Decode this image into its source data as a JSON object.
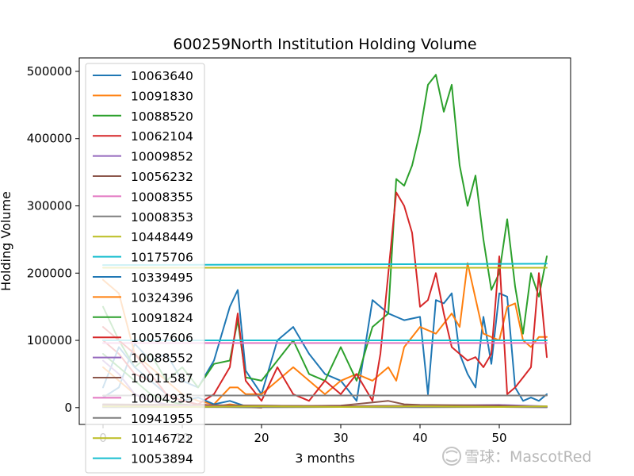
{
  "chart_data": {
    "type": "line",
    "title": "600259North Institution Holding Volume",
    "xlabel": "3 months",
    "ylabel": "Holding Volume",
    "xlim": [
      -3,
      59
    ],
    "ylim": [
      -25000,
      520000
    ],
    "xticks": [
      0,
      10,
      20,
      30,
      40,
      50
    ],
    "xtick_labels": [
      "0",
      "10",
      "20",
      "30",
      "40",
      "50"
    ],
    "yticks": [
      0,
      100000,
      200000,
      300000,
      400000,
      500000
    ],
    "ytick_labels": [
      "0",
      "100000",
      "200000",
      "300000",
      "400000",
      "500000"
    ],
    "grid": false,
    "legend_position": "upper-left",
    "series": [
      {
        "name": "10063640",
        "color": "#1f77b4",
        "x": [
          0,
          2,
          4,
          6,
          8,
          10,
          12,
          14,
          16,
          17,
          18,
          20,
          22,
          24,
          26,
          28,
          30,
          32,
          34,
          36,
          38,
          40,
          41,
          42,
          43,
          44,
          45,
          46,
          47,
          48,
          49,
          50,
          51,
          52,
          53,
          54,
          55,
          56
        ],
        "y": [
          15000,
          30000,
          95000,
          70000,
          80000,
          40000,
          30000,
          70000,
          150000,
          175000,
          55000,
          20000,
          100000,
          120000,
          80000,
          50000,
          40000,
          10000,
          160000,
          140000,
          130000,
          135000,
          20000,
          160000,
          155000,
          170000,
          80000,
          50000,
          30000,
          135000,
          65000,
          170000,
          165000,
          30000,
          10000,
          15000,
          10000,
          20000
        ]
      },
      {
        "name": "10091830",
        "color": "#ff7f0e",
        "x": [
          0,
          2,
          4,
          6,
          8,
          10,
          12,
          14,
          16,
          17,
          18,
          20,
          22,
          24,
          26,
          28,
          30,
          32,
          34,
          36,
          37,
          38,
          40,
          42,
          44,
          45,
          46,
          48,
          50,
          51,
          52,
          53,
          54,
          55,
          56
        ],
        "y": [
          190000,
          170000,
          80000,
          60000,
          40000,
          20000,
          10000,
          5000,
          30000,
          30000,
          20000,
          20000,
          40000,
          60000,
          40000,
          20000,
          40000,
          50000,
          40000,
          60000,
          40000,
          90000,
          120000,
          110000,
          140000,
          120000,
          215000,
          110000,
          100000,
          150000,
          155000,
          100000,
          90000,
          105000,
          105000
        ]
      },
      {
        "name": "10088520",
        "color": "#2ca02c",
        "x": [
          0,
          2,
          4,
          6,
          8,
          10,
          12,
          14,
          16,
          17,
          18,
          20,
          22,
          24,
          26,
          28,
          30,
          32,
          34,
          36,
          37,
          38,
          39,
          40,
          41,
          42,
          43,
          44,
          45,
          46,
          47,
          48,
          49,
          50,
          51,
          52,
          53,
          54,
          55,
          56
        ],
        "y": [
          150000,
          100000,
          60000,
          80000,
          40000,
          60000,
          30000,
          65000,
          70000,
          130000,
          45000,
          40000,
          70000,
          100000,
          50000,
          40000,
          90000,
          40000,
          120000,
          140000,
          340000,
          330000,
          360000,
          410000,
          480000,
          495000,
          440000,
          480000,
          360000,
          300000,
          345000,
          250000,
          175000,
          200000,
          280000,
          180000,
          110000,
          200000,
          165000,
          225000
        ]
      },
      {
        "name": "10062104",
        "color": "#d62728",
        "x": [
          0,
          2,
          4,
          6,
          8,
          10,
          12,
          14,
          16,
          17,
          18,
          20,
          22,
          24,
          26,
          28,
          30,
          32,
          34,
          35,
          36,
          37,
          38,
          39,
          40,
          41,
          42,
          43,
          44,
          45,
          46,
          47,
          48,
          49,
          50,
          51,
          52,
          53,
          54,
          55,
          56
        ],
        "y": [
          100000,
          80000,
          50000,
          40000,
          20000,
          10000,
          5000,
          20000,
          60000,
          140000,
          40000,
          10000,
          60000,
          20000,
          10000,
          40000,
          20000,
          50000,
          10000,
          80000,
          200000,
          320000,
          300000,
          260000,
          150000,
          160000,
          200000,
          140000,
          90000,
          80000,
          70000,
          75000,
          60000,
          80000,
          225000,
          20000,
          30000,
          45000,
          60000,
          200000,
          75000
        ]
      },
      {
        "name": "10009852",
        "color": "#9467bd",
        "x": [
          0,
          10,
          20,
          30,
          40,
          50,
          56
        ],
        "y": [
          3000,
          2000,
          3000,
          2000,
          3000,
          4000,
          2000
        ]
      },
      {
        "name": "10056232",
        "color": "#8c564b",
        "x": [
          0,
          10,
          20,
          30,
          36,
          38,
          40,
          50,
          56
        ],
        "y": [
          2000,
          3000,
          2000,
          3000,
          10000,
          5000,
          4000,
          3000,
          1000
        ]
      },
      {
        "name": "10008355",
        "color": "#e377c2",
        "x": [
          0,
          56
        ],
        "y": [
          96000,
          96000
        ]
      },
      {
        "name": "10008353",
        "color": "#7f7f7f",
        "x": [
          0,
          20,
          56
        ],
        "y": [
          18000,
          18000,
          18000
        ]
      },
      {
        "name": "10448449",
        "color": "#bcbd22",
        "x": [
          0,
          56
        ],
        "y": [
          208000,
          208000
        ]
      },
      {
        "name": "10175706",
        "color": "#17becf",
        "x": [
          0,
          56
        ],
        "y": [
          212000,
          214000
        ]
      },
      {
        "name": "10339495",
        "color": "#1f77b4",
        "x": [
          0,
          2,
          4,
          6,
          8,
          10,
          12,
          14,
          16,
          18,
          20
        ],
        "y": [
          30000,
          90000,
          60000,
          40000,
          20000,
          10000,
          15000,
          5000,
          10000,
          2000,
          1000
        ]
      },
      {
        "name": "10324396",
        "color": "#ff7f0e",
        "x": [
          0,
          2,
          4,
          6,
          8,
          10,
          12,
          14,
          16,
          18,
          20
        ],
        "y": [
          60000,
          40000,
          20000,
          10000,
          5000,
          3000,
          2000,
          1000,
          5000,
          2000,
          1000
        ]
      },
      {
        "name": "10091824",
        "color": "#2ca02c",
        "x": [
          0,
          2,
          4,
          6,
          8,
          10,
          12,
          14,
          16,
          18,
          20
        ],
        "y": [
          80000,
          60000,
          40000,
          20000,
          10000,
          5000,
          3000,
          2000,
          1000,
          500,
          0
        ]
      },
      {
        "name": "10057606",
        "color": "#d62728",
        "x": [
          0,
          2,
          4,
          6,
          8,
          10,
          12,
          14,
          16,
          18,
          20
        ],
        "y": [
          120000,
          100000,
          80000,
          50000,
          20000,
          10000,
          5000,
          3000,
          2000,
          1000,
          0
        ]
      },
      {
        "name": "10088552",
        "color": "#9467bd",
        "x": [
          0,
          2,
          4,
          6,
          8,
          10,
          12
        ],
        "y": [
          70000,
          50000,
          20000,
          10000,
          5000,
          2000,
          1000
        ]
      },
      {
        "name": "10011587",
        "color": "#8c564b",
        "x": [
          0,
          10,
          20,
          30,
          40,
          50,
          56
        ],
        "y": [
          5000,
          4000,
          3000,
          2000,
          3000,
          2000,
          1000
        ]
      },
      {
        "name": "10004935",
        "color": "#e377c2",
        "x": [
          0,
          10,
          20,
          30,
          40,
          50,
          56
        ],
        "y": [
          1000,
          2000,
          1500,
          1000,
          2000,
          1000,
          500
        ]
      },
      {
        "name": "10941955",
        "color": "#7f7f7f",
        "x": [
          0,
          10,
          20,
          30,
          40,
          50,
          56
        ],
        "y": [
          500,
          1000,
          500,
          1000,
          500,
          1000,
          500
        ]
      },
      {
        "name": "10146722",
        "color": "#bcbd22",
        "x": [
          0,
          10,
          20,
          30,
          40,
          50,
          56
        ],
        "y": [
          2000,
          1000,
          2000,
          1000,
          2000,
          1000,
          2000
        ]
      },
      {
        "name": "10053894",
        "color": "#17becf",
        "x": [
          0,
          56
        ],
        "y": [
          100000,
          100000
        ]
      }
    ]
  },
  "watermark": {
    "text": "雪球：MascotRed"
  }
}
